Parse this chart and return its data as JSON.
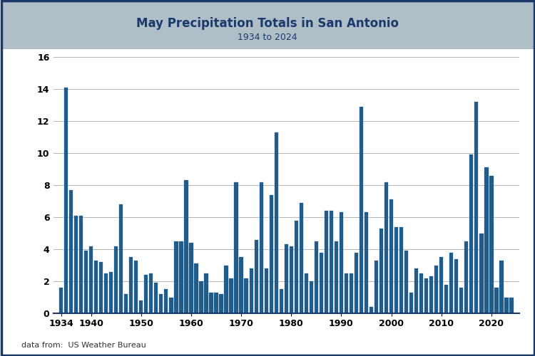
{
  "title": "May Precipitation Totals in San Antonio",
  "subtitle": "1934 to 2024",
  "source": "data from:  US Weather Bureau",
  "bar_color": "#1f5c8b",
  "header_bg_color": "#b0bec8",
  "plot_bg_color": "#ffffff",
  "fig_bg_color": "#ffffff",
  "title_color": "#1a3a6b",
  "border_color": "#1a3a6b",
  "ylim": [
    0,
    16
  ],
  "yticks": [
    0,
    2,
    4,
    6,
    8,
    10,
    12,
    14,
    16
  ],
  "years": [
    1934,
    1935,
    1936,
    1937,
    1938,
    1939,
    1940,
    1941,
    1942,
    1943,
    1944,
    1945,
    1946,
    1947,
    1948,
    1949,
    1950,
    1951,
    1952,
    1953,
    1954,
    1955,
    1956,
    1957,
    1958,
    1959,
    1960,
    1961,
    1962,
    1963,
    1964,
    1965,
    1966,
    1967,
    1968,
    1969,
    1970,
    1971,
    1972,
    1973,
    1974,
    1975,
    1976,
    1977,
    1978,
    1979,
    1980,
    1981,
    1982,
    1983,
    1984,
    1985,
    1986,
    1987,
    1988,
    1989,
    1990,
    1991,
    1992,
    1993,
    1994,
    1995,
    1996,
    1997,
    1998,
    1999,
    2000,
    2001,
    2002,
    2003,
    2004,
    2005,
    2006,
    2007,
    2008,
    2009,
    2010,
    2011,
    2012,
    2013,
    2014,
    2015,
    2016,
    2017,
    2018,
    2019,
    2020,
    2021,
    2022,
    2023,
    2024
  ],
  "values": [
    1.6,
    14.1,
    7.7,
    6.1,
    6.1,
    3.9,
    4.2,
    3.3,
    3.2,
    2.5,
    2.6,
    4.2,
    6.8,
    1.2,
    3.5,
    3.3,
    0.8,
    2.4,
    2.5,
    1.9,
    1.2,
    1.5,
    1.0,
    4.5,
    4.5,
    8.3,
    4.4,
    3.1,
    2.0,
    2.5,
    1.3,
    1.3,
    1.2,
    3.0,
    2.2,
    8.2,
    3.5,
    2.2,
    2.8,
    4.6,
    8.2,
    2.8,
    7.4,
    11.3,
    1.5,
    4.3,
    4.2,
    5.8,
    6.9,
    2.5,
    2.0,
    4.5,
    3.8,
    6.4,
    6.4,
    4.5,
    6.3,
    2.5,
    2.5,
    3.8,
    12.9,
    6.3,
    0.4,
    3.3,
    5.3,
    8.2,
    7.1,
    5.4,
    5.4,
    3.9,
    1.3,
    2.8,
    2.5,
    2.2,
    2.3,
    3.0,
    3.5,
    1.8,
    3.8,
    3.4,
    1.6,
    4.5,
    9.9,
    13.2,
    5.0,
    9.1,
    8.6,
    1.6,
    3.3,
    1.0,
    1.0
  ],
  "xtick_positions": [
    1934,
    1940,
    1950,
    1960,
    1970,
    1980,
    1990,
    2000,
    2010,
    2020
  ],
  "xtick_labels": [
    "1934",
    "1940",
    "1950",
    "1960",
    "1970",
    "1980",
    "1990",
    "2000",
    "2010",
    "2020"
  ],
  "figwidth": 7.5,
  "figheight": 5.0,
  "dpi": 100
}
